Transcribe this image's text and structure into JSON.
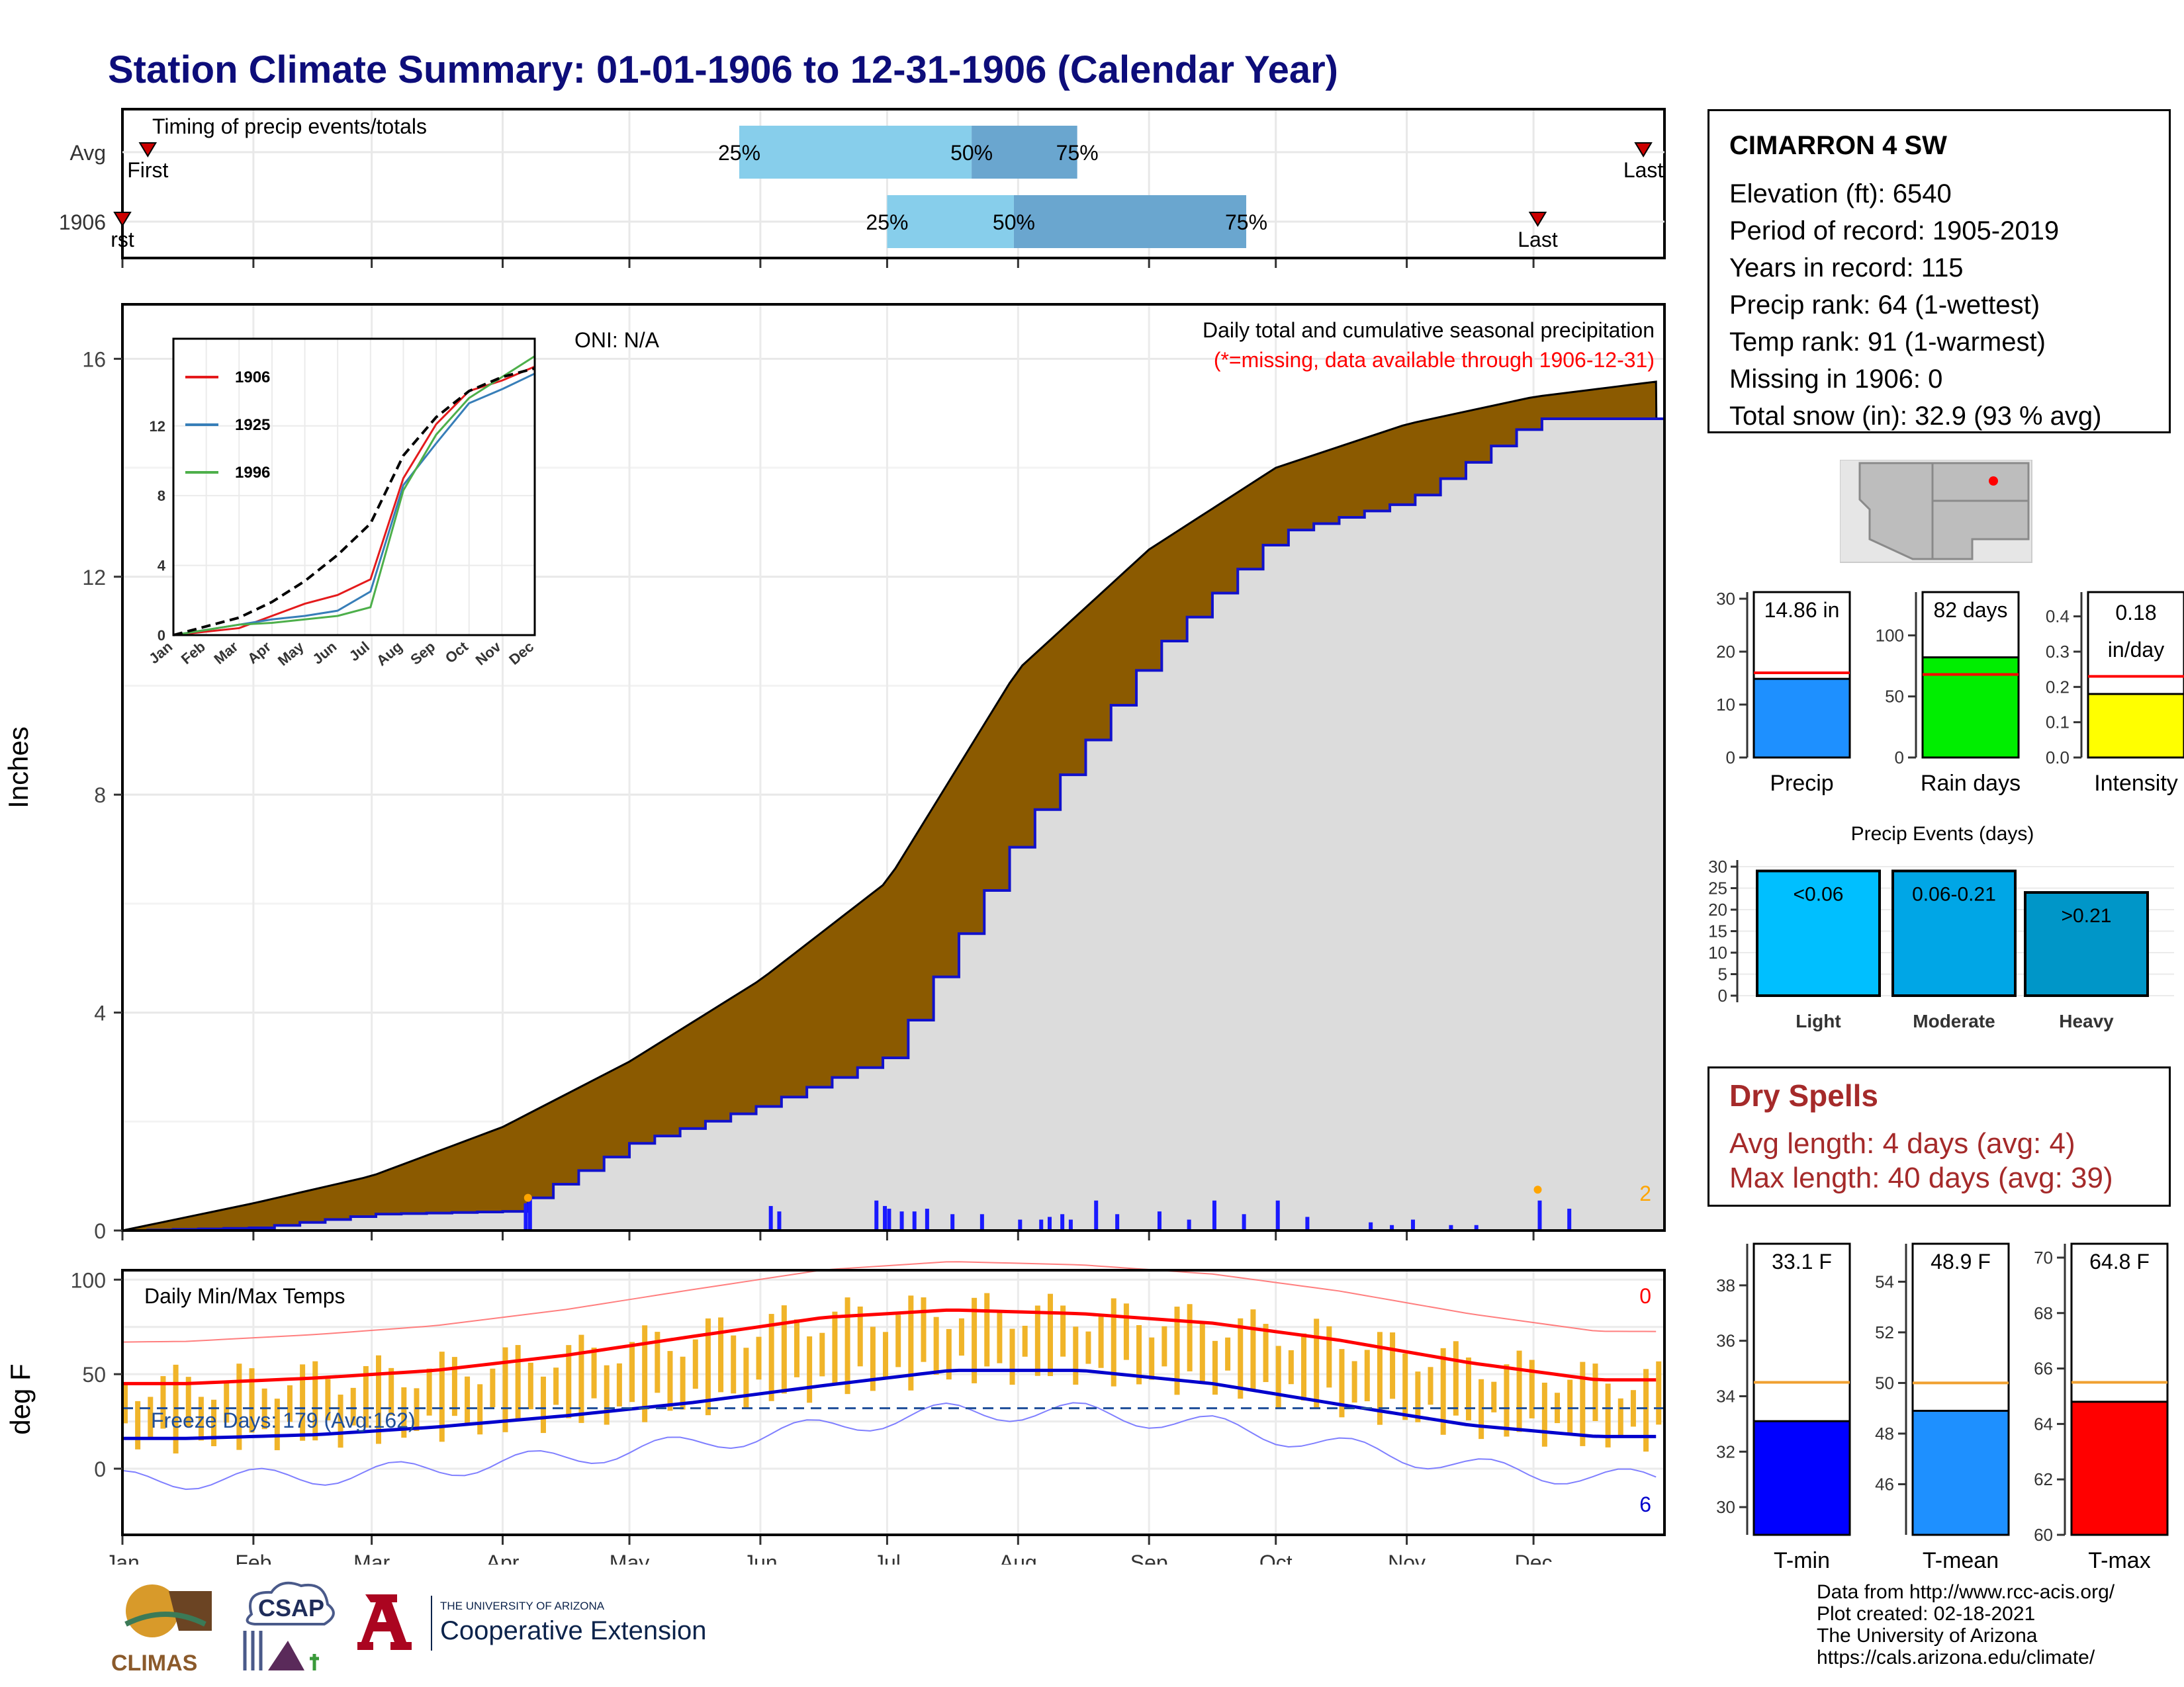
{
  "title": "Station Climate Summary: 01-01-1906 to 12-31-1906 (Calendar Year)",
  "timing": {
    "label": "Timing of precip events/totals",
    "rows": [
      {
        "name": "Avg",
        "q25": 25,
        "q50": 50,
        "q75": 75,
        "first_label": "First",
        "last_label": "Last"
      },
      {
        "name": "1906",
        "q25": 25,
        "q50": 50,
        "q75": 75,
        "first_label": "rst",
        "last_label": "Last"
      }
    ],
    "pct_labels": [
      "25%",
      "50%",
      "75%"
    ]
  },
  "precip_chart": {
    "ylabel": "Inches",
    "yticks": [
      "0",
      "4",
      "8",
      "12",
      "16"
    ],
    "oni": "ONI: N/A",
    "caption": "Daily total and cumulative seasonal precipitation",
    "missing_note": "(*=missing, data available through 1906-12-31)",
    "missing_count": "2",
    "colors": {
      "normal_fill": "#8b5a00",
      "observed_fill": "#dcdcdc",
      "observed_line": "#1111cc",
      "daily_bar": "#1a1aff"
    }
  },
  "inset": {
    "yticks": [
      "0",
      "4",
      "8",
      "12"
    ],
    "months": [
      "Jan",
      "Feb",
      "Mar",
      "Apr",
      "May",
      "Jun",
      "Jul",
      "Aug",
      "Sep",
      "Oct",
      "Nov",
      "Dec"
    ],
    "legend": [
      {
        "name": "1906",
        "color": "#e41a1c"
      },
      {
        "name": "1925",
        "color": "#377eb8"
      },
      {
        "name": "1996",
        "color": "#4daf4a"
      }
    ]
  },
  "temp_chart": {
    "ylabel": "deg F",
    "label": "Daily Min/Max Temps",
    "freeze": "Freeze Days: 179 (Avg:162)",
    "top_count": "0",
    "bottom_count": "6",
    "yticks": [
      "0",
      "50",
      "100"
    ],
    "colors": {
      "bar": "#f0b429",
      "max": "#ff0000",
      "min": "#0000cc"
    }
  },
  "months": [
    "Jan",
    "Feb",
    "Mar",
    "Apr",
    "May",
    "Jun",
    "Jul",
    "Aug",
    "Sep",
    "Oct",
    "Nov",
    "Dec"
  ],
  "station": {
    "name": "CIMARRON 4 SW",
    "rows": [
      "Elevation (ft): 6540",
      "Period of record: 1905-2019",
      "Years in record: 115",
      "Precip rank: 64 (1-wettest)",
      "Temp rank: 91 (1-warmest)",
      "Missing in 1906: 0",
      "Total snow (in): 32.9 (93 % avg)"
    ]
  },
  "mini_bars": [
    {
      "label": "Precip",
      "value_text": "14.86 in",
      "value": 14.86,
      "avg": 16.0,
      "ymax": 30,
      "ticks": [
        "0",
        "10",
        "20",
        "30"
      ],
      "color": "#1e90ff"
    },
    {
      "label": "Rain days",
      "value_text": "82 days",
      "value": 82,
      "avg": 68,
      "ymax": 130,
      "ticks": [
        "0",
        "50",
        "100"
      ],
      "color": "#00ee00"
    },
    {
      "label": "Intensity",
      "value_text": "0.18",
      "value_text2": "in/day",
      "value": 0.18,
      "avg": 0.23,
      "ymax": 0.45,
      "ticks": [
        "0.0",
        "0.1",
        "0.2",
        "0.3",
        "0.4"
      ],
      "color": "#ffff00"
    }
  ],
  "events": {
    "title": "Precip Events (days)",
    "ticks": [
      "0",
      "5",
      "10",
      "15",
      "20",
      "25",
      "30"
    ],
    "bars": [
      {
        "cat": "Light",
        "range": "<0.06",
        "value": 29,
        "color": "#00bfff"
      },
      {
        "cat": "Moderate",
        "range": "0.06-0.21",
        "value": 29,
        "color": "#00a6e6"
      },
      {
        "cat": "Heavy",
        "range": ">0.21",
        "value": 24,
        "color": "#0096c8"
      }
    ]
  },
  "dry": {
    "title": "Dry Spells",
    "avg_length": "Avg length: 4 days (avg: 4)",
    "max_length": "Max length: 40 days (avg: 39)"
  },
  "temp_bars": [
    {
      "label": "T-min",
      "value_text": "33.1 F",
      "value": 33.1,
      "avg": 34.5,
      "ymin": 29,
      "ymax": 39.5,
      "ticks": [
        "30",
        "32",
        "34",
        "36",
        "38"
      ],
      "color": "#0000ff"
    },
    {
      "label": "T-mean",
      "value_text": "48.9 F",
      "value": 48.9,
      "avg": 50.0,
      "ymin": 44,
      "ymax": 55.5,
      "ticks": [
        "46",
        "48",
        "50",
        "52",
        "54"
      ],
      "color": "#1e90ff"
    },
    {
      "label": "T-max",
      "value_text": "64.8 F",
      "value": 64.8,
      "avg": 65.5,
      "ymin": 60,
      "ymax": 70.5,
      "ticks": [
        "60",
        "62",
        "64",
        "66",
        "68",
        "70"
      ],
      "color": "#ff0000"
    }
  ],
  "footer": [
    "Data from http://www.rcc-acis.org/",
    "Plot created: 02-18-2021",
    "The University of Arizona",
    "https://cals.arizona.edu/climate/"
  ],
  "logos": {
    "climas": "CLIMAS",
    "csap": "CSAP",
    "ua_small": "THE UNIVERSITY OF ARIZONA",
    "ua_big": "Cooperative Extension"
  },
  "chart_data": [
    {
      "type": "bar",
      "title": "Timing of precip events/totals",
      "categories": [
        "Avg",
        "1906"
      ],
      "series": [
        {
          "name": "25%",
          "values": [
            "05-27",
            "07-01"
          ]
        },
        {
          "name": "50%",
          "values": [
            "07-21",
            "07-31"
          ]
        },
        {
          "name": "75%",
          "values": [
            "08-15",
            "09-24"
          ]
        }
      ]
    },
    {
      "type": "area",
      "title": "Daily total and cumulative seasonal precipitation",
      "xlabel": "",
      "ylabel": "Inches",
      "x": [
        "01-01",
        "02-01",
        "03-01",
        "04-01",
        "05-01",
        "06-01",
        "07-01",
        "08-01",
        "09-01",
        "10-01",
        "11-01",
        "12-01",
        "12-31"
      ],
      "series": [
        {
          "name": "Average cumulative",
          "values": [
            0,
            0.5,
            1.0,
            1.9,
            3.1,
            4.6,
            6.4,
            10.3,
            12.5,
            14.0,
            14.8,
            15.3,
            15.6
          ]
        },
        {
          "name": "1906 cumulative",
          "values": [
            0,
            0.05,
            0.3,
            0.35,
            1.6,
            2.3,
            3.2,
            7.3,
            10.6,
            12.8,
            13.4,
            14.9,
            14.9
          ]
        }
      ],
      "ylim": [
        0,
        17
      ]
    },
    {
      "type": "line",
      "title": "",
      "xlabel": "",
      "ylabel": "",
      "x": [
        "Jan",
        "Feb",
        "Mar",
        "Apr",
        "May",
        "Jun",
        "Jul",
        "Aug",
        "Sep",
        "Oct",
        "Nov",
        "Dec"
      ],
      "series": [
        {
          "name": "1906",
          "values": [
            0,
            0.2,
            0.4,
            1.1,
            1.8,
            2.3,
            3.2,
            9.0,
            12.1,
            14.0,
            14.6,
            15.4
          ]
        },
        {
          "name": "1925",
          "values": [
            0,
            0.3,
            0.6,
            0.9,
            1.1,
            1.4,
            2.5,
            8.6,
            11.0,
            13.3,
            14.1,
            15.0
          ]
        },
        {
          "name": "1996",
          "values": [
            0,
            0.3,
            0.6,
            0.7,
            0.9,
            1.1,
            1.6,
            8.3,
            11.5,
            13.6,
            14.8,
            16.0
          ]
        },
        {
          "name": "avg",
          "values": [
            0,
            0.5,
            1.0,
            1.9,
            3.1,
            4.6,
            6.4,
            10.3,
            12.5,
            14.0,
            14.8,
            15.3
          ]
        }
      ],
      "ylim": [
        0,
        17
      ]
    },
    {
      "type": "line",
      "title": "Daily Min/Max Temps",
      "ylabel": "deg F",
      "x": [
        "Jan",
        "Feb",
        "Mar",
        "Apr",
        "May",
        "Jun",
        "Jul",
        "Aug",
        "Sep",
        "Oct",
        "Nov",
        "Dec"
      ],
      "series": [
        {
          "name": "avg max",
          "values": [
            45,
            48,
            52,
            60,
            70,
            80,
            84,
            82,
            77,
            68,
            56,
            47
          ]
        },
        {
          "name": "avg min",
          "values": [
            16,
            18,
            22,
            28,
            35,
            44,
            52,
            52,
            45,
            34,
            23,
            17
          ]
        }
      ],
      "ylim": [
        -35,
        105
      ]
    },
    {
      "type": "bar",
      "title": "Precip Events (days)",
      "categories": [
        "Light",
        "Moderate",
        "Heavy"
      ],
      "values": [
        29,
        29,
        24
      ],
      "ylim": [
        0,
        30
      ]
    },
    {
      "type": "bar",
      "categories": [
        "Precip",
        "Rain days",
        "Intensity"
      ],
      "values": [
        14.86,
        82,
        0.18
      ]
    },
    {
      "type": "bar",
      "categories": [
        "T-min",
        "T-mean",
        "T-max"
      ],
      "values": [
        33.1,
        48.9,
        64.8
      ]
    }
  ]
}
